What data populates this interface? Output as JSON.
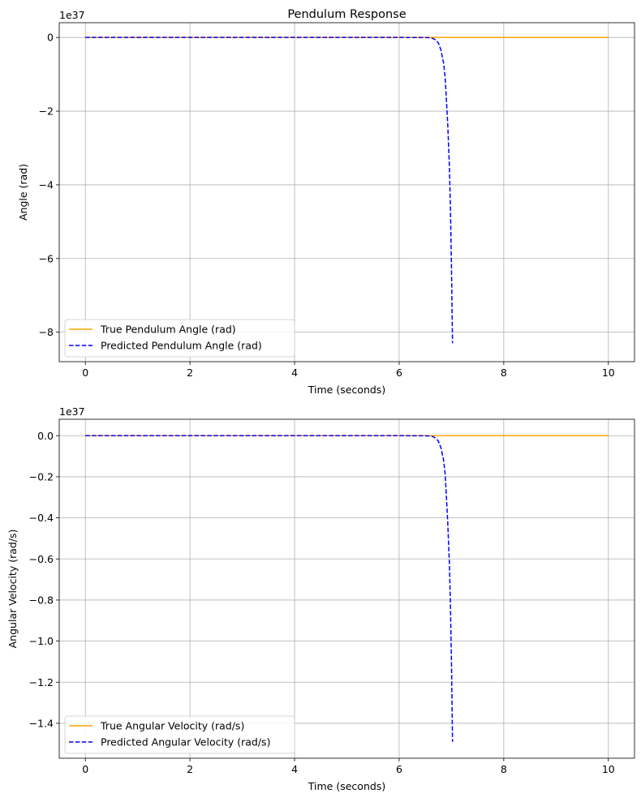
{
  "chart_data": [
    {
      "type": "line",
      "title": "Pendulum Response",
      "xlabel": "Time (seconds)",
      "ylabel": "Angle (rad)",
      "offset_label": "1e37",
      "xlim": [
        -0.5,
        10.5
      ],
      "ylim": [
        -8.8,
        0.4
      ],
      "xticks": [
        0,
        2,
        4,
        6,
        8,
        10
      ],
      "xtick_labels": [
        "0",
        "2",
        "4",
        "6",
        "8",
        "10"
      ],
      "yticks": [
        0,
        -2,
        -4,
        -6,
        -8
      ],
      "ytick_labels": [
        "0",
        "−2",
        "−4",
        "−6",
        "−8"
      ],
      "grid": true,
      "legend_position": "lower-left",
      "series": [
        {
          "name": "True Pendulum Angle (rad)",
          "color": "#ffa500",
          "style": "solid",
          "x": [
            0,
            10
          ],
          "y": [
            0,
            0
          ]
        },
        {
          "name": "Predicted Pendulum Angle (rad)",
          "color": "#0000ff",
          "style": "dashed",
          "x": [
            0,
            6.0,
            6.5,
            6.6,
            6.65,
            6.7,
            6.75,
            6.8,
            6.85,
            6.88,
            6.9,
            6.93,
            6.96,
            6.98,
            7.0,
            7.02
          ],
          "y": [
            0,
            0,
            -0.002,
            -0.01,
            -0.03,
            -0.07,
            -0.15,
            -0.35,
            -0.7,
            -1.1,
            -1.6,
            -2.4,
            -3.5,
            -4.6,
            -6.2,
            -8.3
          ]
        }
      ]
    },
    {
      "type": "line",
      "title": "",
      "xlabel": "Time (seconds)",
      "ylabel": "Angular Velocity (rad/s)",
      "offset_label": "1e37",
      "xlim": [
        -0.5,
        10.5
      ],
      "ylim": [
        -1.57,
        0.08
      ],
      "xticks": [
        0,
        2,
        4,
        6,
        8,
        10
      ],
      "xtick_labels": [
        "0",
        "2",
        "4",
        "6",
        "8",
        "10"
      ],
      "yticks": [
        0.0,
        -0.2,
        -0.4,
        -0.6,
        -0.8,
        -1.0,
        -1.2,
        -1.4
      ],
      "ytick_labels": [
        "0.0",
        "−0.2",
        "−0.4",
        "−0.6",
        "−0.8",
        "−1.0",
        "−1.2",
        "−1.4"
      ],
      "grid": true,
      "legend_position": "lower-left",
      "series": [
        {
          "name": "True Angular Velocity (rad/s)",
          "color": "#ffa500",
          "style": "solid",
          "x": [
            0,
            10
          ],
          "y": [
            0,
            0
          ]
        },
        {
          "name": "Predicted Angular Velocity (rad/s)",
          "color": "#0000ff",
          "style": "dashed",
          "x": [
            0,
            6.0,
            6.5,
            6.6,
            6.65,
            6.7,
            6.75,
            6.8,
            6.85,
            6.88,
            6.9,
            6.93,
            6.96,
            6.98,
            7.0,
            7.02
          ],
          "y": [
            0,
            0,
            -0.0004,
            -0.002,
            -0.005,
            -0.012,
            -0.027,
            -0.06,
            -0.12,
            -0.19,
            -0.28,
            -0.43,
            -0.62,
            -0.82,
            -1.1,
            -1.49
          ]
        }
      ]
    }
  ]
}
